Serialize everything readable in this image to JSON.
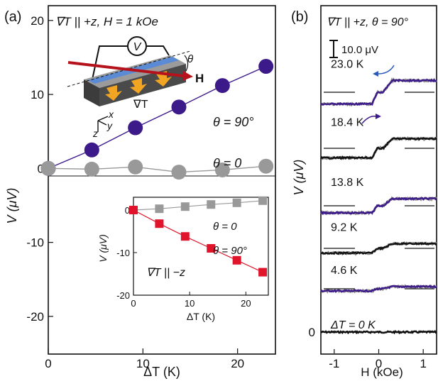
{
  "chart_data": [
    {
      "panel": "(a)",
      "type": "scatter",
      "title": "∇T || +z, H = 1 kOe",
      "xlabel": "ΔT (K)",
      "ylabel": "V (μV)",
      "xlim": [
        0,
        24
      ],
      "ylim": [
        -25,
        22
      ],
      "xticks": [
        0,
        10,
        20
      ],
      "yticks": [
        20,
        10,
        0,
        -10,
        -20
      ],
      "series": [
        {
          "name": "θ = 90°",
          "color": "#3d1a8a",
          "x": [
            0,
            4.6,
            9.2,
            13.8,
            18.4,
            23.0
          ],
          "y": [
            0,
            2.5,
            5.5,
            8.3,
            11.2,
            13.8
          ]
        },
        {
          "name": "θ = 0",
          "color": "#999999",
          "x": [
            0,
            4.6,
            9.2,
            13.8,
            18.4,
            23.0
          ],
          "y": [
            0,
            -0.1,
            0.2,
            -0.5,
            -0.2,
            0.3
          ]
        }
      ],
      "inset": {
        "type": "scatter",
        "label": "∇T || −z",
        "xlabel": "ΔT (K)",
        "ylabel": "V (μV)",
        "xlim": [
          0,
          24
        ],
        "ylim": [
          -20,
          3
        ],
        "xticks": [
          0,
          10,
          20
        ],
        "yticks": [
          0,
          -10,
          -20
        ],
        "series": [
          {
            "name": "θ = 0",
            "color": "#999999",
            "x": [
              0,
              4.6,
              9.2,
              13.8,
              18.4,
              23.0
            ],
            "y": [
              0,
              0.3,
              0.8,
              1.3,
              1.7,
              2.2
            ]
          },
          {
            "name": "θ = 90°",
            "color": "#e0142a",
            "x": [
              0,
              4.6,
              9.2,
              13.8,
              18.4,
              23.0
            ],
            "y": [
              0,
              -3.2,
              -6.2,
              -9.0,
              -11.8,
              -14.6
            ]
          }
        ]
      },
      "schematic": {
        "voltmeter": "V",
        "field": "H",
        "angle": "θ",
        "gradient": "∇T",
        "axes": [
          "x",
          "y",
          "z"
        ]
      }
    },
    {
      "panel": "(b)",
      "type": "line",
      "title": "∇T || +z, θ = 90°",
      "xlabel": "H (kOe)",
      "ylabel": "V (μV)",
      "xlim": [
        -1.3,
        1.3
      ],
      "xticks": [
        -1,
        0,
        1
      ],
      "y_tick_label": "0",
      "scale_bar": "10.0 μV",
      "traces": [
        {
          "label": "ΔT = 0 K",
          "switch_field": 0.0,
          "step_uV": 0
        },
        {
          "label": "4.6 K",
          "switch_field": 0.15,
          "step_uV": 2.5
        },
        {
          "label": "9.2 K",
          "switch_field": 0.15,
          "step_uV": 5.5
        },
        {
          "label": "13.8 K",
          "switch_field": 0.15,
          "step_uV": 8.3
        },
        {
          "label": "18.4 K",
          "switch_field": 0.15,
          "step_uV": 11.2
        },
        {
          "label": "23.0 K",
          "switch_field": 0.15,
          "step_uV": 13.8
        }
      ],
      "colors": {
        "up": "#3d1a8a",
        "down": "#111111",
        "gray": "#888888",
        "arrow": "#2a5ab8"
      }
    }
  ]
}
